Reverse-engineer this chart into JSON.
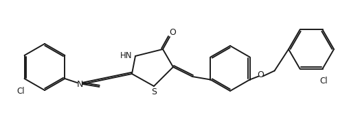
{
  "background_color": "#ffffff",
  "line_color": "#1a1a1a",
  "line_width": 1.4,
  "font_size": 8.5,
  "figsize": [
    5.24,
    1.96
  ],
  "dpi": 100,
  "xlim": [
    0,
    524
  ],
  "ylim": [
    0,
    196
  ]
}
